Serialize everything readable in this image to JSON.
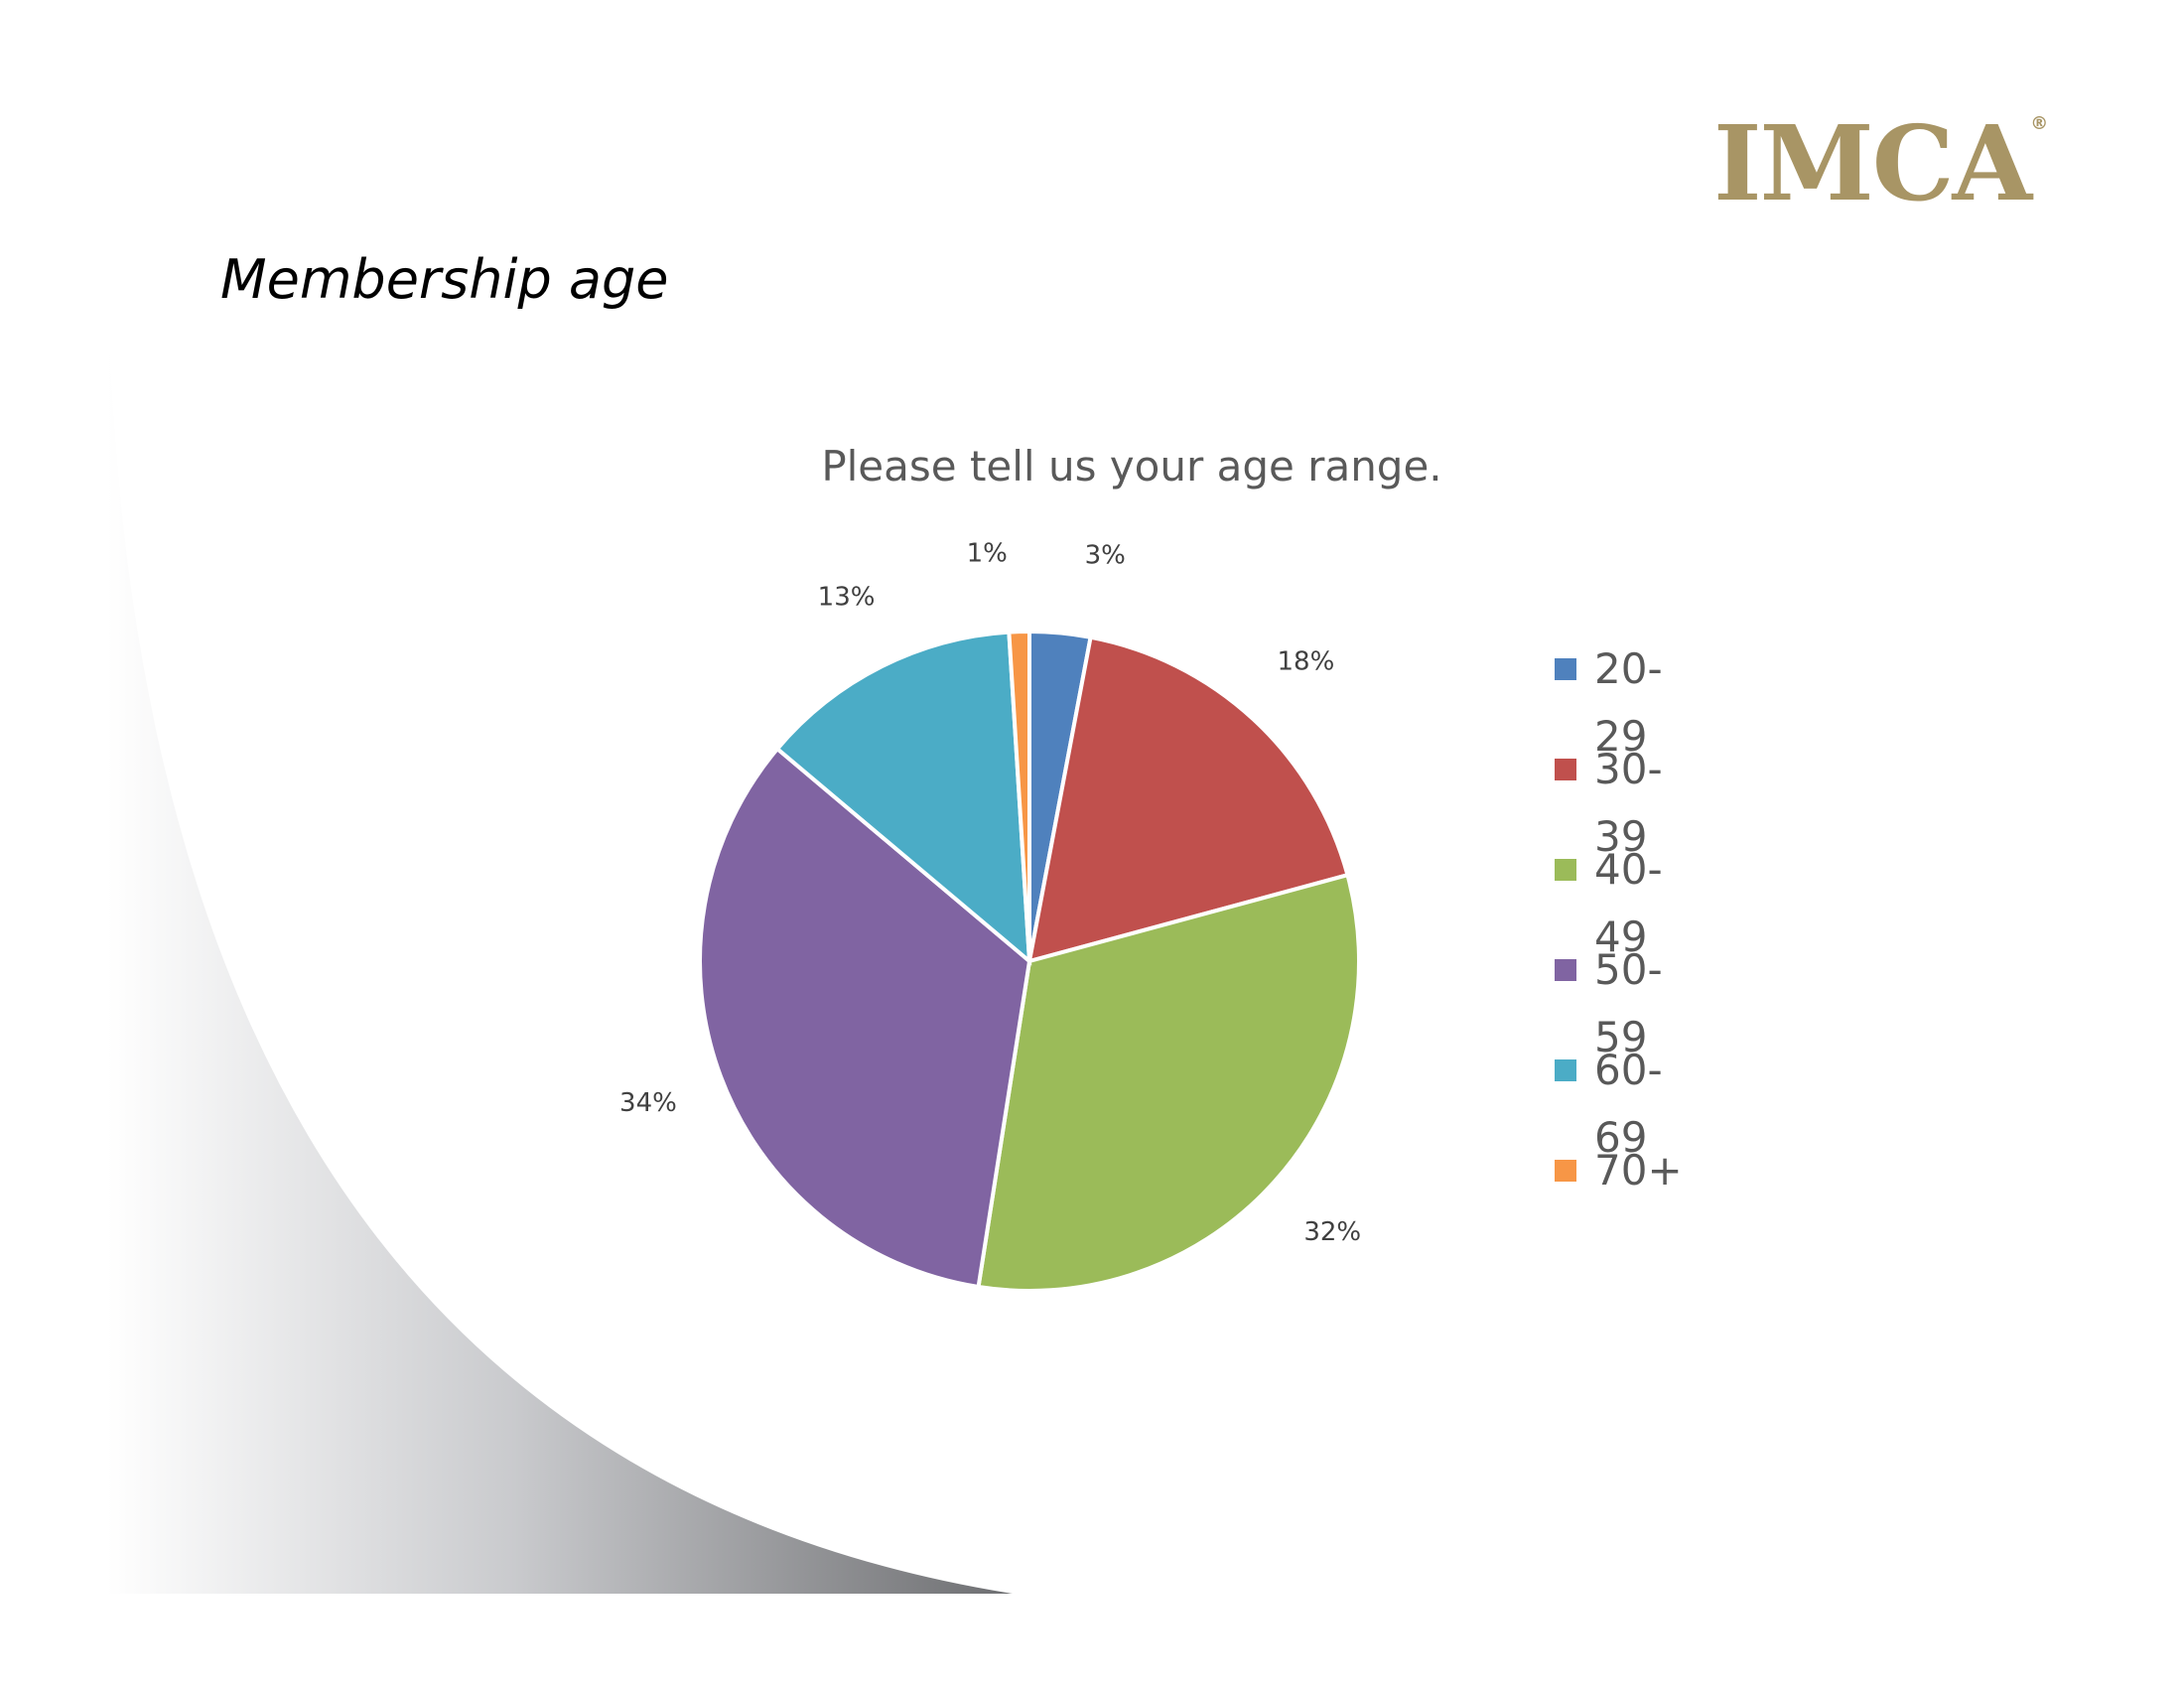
{
  "logo": {
    "text": "IMCA",
    "mark": "®"
  },
  "slide": {
    "title": "Membership age"
  },
  "chart_data": {
    "type": "pie",
    "title": "Please tell us your age range.",
    "categories": [
      "20-29",
      "30-39",
      "40-49",
      "50-59",
      "60-69",
      "70+"
    ],
    "values": [
      3,
      18,
      32,
      34,
      13,
      1
    ],
    "data_labels": [
      "3%",
      "18%",
      "32%",
      "34%",
      "13%",
      "1%"
    ],
    "colors": [
      "#4f81bd",
      "#c0504d",
      "#9bbb59",
      "#8064a2",
      "#4bacc6",
      "#f79646"
    ],
    "legend_position": "right",
    "start_angle": "12 o'clock, clockwise"
  }
}
